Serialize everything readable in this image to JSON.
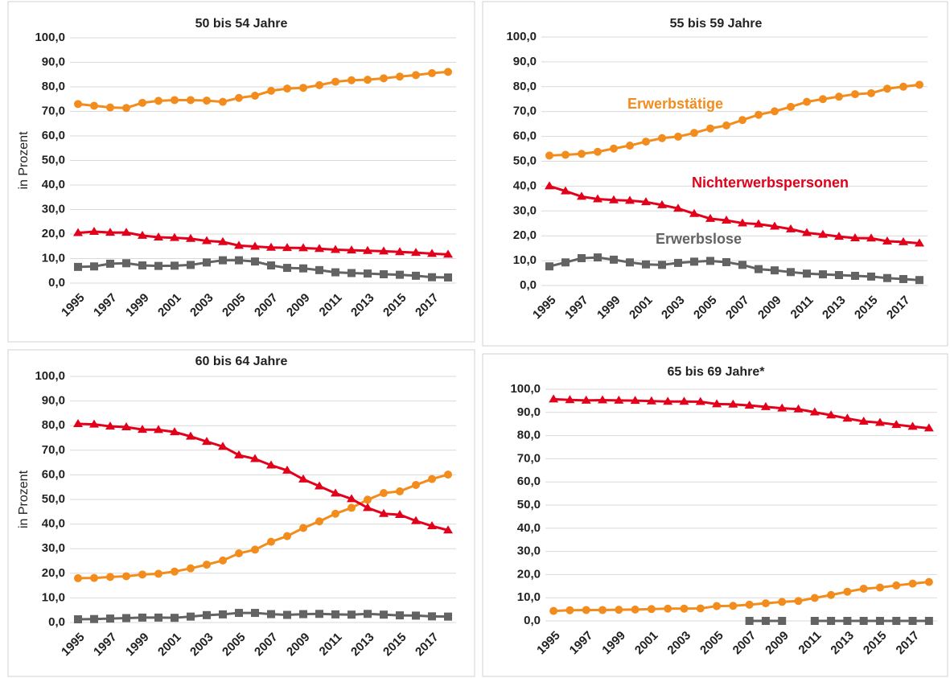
{
  "chart_data": [
    {
      "type": "line",
      "title": "50 bis 54 Jahre",
      "y_label": "in Prozent",
      "categories": [
        "1995",
        null,
        "1997",
        null,
        "1999",
        null,
        "2001",
        null,
        "2003",
        null,
        "2005",
        null,
        "2007",
        null,
        "2009",
        null,
        "2011",
        null,
        "2013",
        null,
        "2015",
        null,
        "2017",
        null
      ],
      "ylim": [
        0,
        100
      ],
      "yticks": [
        {
          "value": 0,
          "label": "0,0"
        },
        {
          "value": 10,
          "label": "10,0"
        },
        {
          "value": 20,
          "label": "20,0"
        },
        {
          "value": 30,
          "label": "30,0"
        },
        {
          "value": 40,
          "label": "40,0"
        },
        {
          "value": 50,
          "label": "50,0"
        },
        {
          "value": 60,
          "label": "60,0"
        },
        {
          "value": 70,
          "label": "70,0"
        },
        {
          "value": 80,
          "label": "80,0"
        },
        {
          "value": 90,
          "label": "90,0"
        },
        {
          "value": 100,
          "label": "100,0"
        }
      ],
      "grid": true,
      "series": [
        {
          "color": "#f28c1c",
          "marker": "circle",
          "values": [
            73.0,
            72.3,
            71.6,
            71.4,
            73.5,
            74.3,
            74.6,
            74.6,
            74.4,
            73.9,
            75.5,
            76.4,
            78.4,
            79.3,
            79.6,
            80.7,
            82.1,
            82.7,
            82.9,
            83.5,
            84.2,
            84.8,
            85.6,
            86.1
          ]
        },
        {
          "color": "#e2001a",
          "marker": "triangle",
          "values": [
            20.5,
            21.0,
            20.6,
            20.6,
            19.4,
            18.7,
            18.5,
            18.1,
            17.2,
            16.8,
            15.3,
            14.9,
            14.5,
            14.4,
            14.3,
            14.0,
            13.6,
            13.4,
            13.2,
            13.0,
            12.7,
            12.4,
            12.0,
            11.7
          ]
        },
        {
          "color": "#636363",
          "marker": "square",
          "values": [
            6.6,
            6.8,
            7.9,
            8.1,
            7.2,
            7.0,
            7.1,
            7.4,
            8.4,
            9.3,
            9.3,
            8.8,
            7.2,
            6.2,
            6.0,
            5.3,
            4.4,
            4.1,
            3.9,
            3.6,
            3.4,
            3.0,
            2.4,
            2.3
          ]
        }
      ]
    },
    {
      "type": "line",
      "title": "55 bis 59 Jahre",
      "categories": [
        "1995",
        null,
        "1997",
        null,
        "1999",
        null,
        "2001",
        null,
        "2003",
        null,
        "2005",
        null,
        "2007",
        null,
        "2009",
        null,
        "2011",
        null,
        "2013",
        null,
        "2015",
        null,
        "2017",
        null
      ],
      "ylim": [
        0,
        100
      ],
      "yticks": [
        {
          "value": 0,
          "label": "0,0"
        },
        {
          "value": 10,
          "label": "10,0"
        },
        {
          "value": 20,
          "label": "20,0"
        },
        {
          "value": 30,
          "label": "30,0"
        },
        {
          "value": 40,
          "label": "40,0"
        },
        {
          "value": 50,
          "label": "50,0"
        },
        {
          "value": 60,
          "label": "60,0"
        },
        {
          "value": 70,
          "label": "70,0"
        },
        {
          "value": 80,
          "label": "80,0"
        },
        {
          "value": 90,
          "label": "90,0"
        },
        {
          "value": 100,
          "label": "100,0"
        }
      ],
      "grid": true,
      "series": [
        {
          "name": "Erwerbstätige",
          "color": "#f28c1c",
          "marker": "circle",
          "values": [
            52.3,
            52.6,
            53.0,
            53.8,
            55.1,
            56.3,
            57.9,
            59.3,
            59.9,
            61.4,
            63.2,
            64.4,
            66.6,
            68.7,
            70.1,
            71.9,
            73.9,
            75.0,
            76.0,
            77.0,
            77.4,
            79.2,
            80.0,
            80.8
          ]
        },
        {
          "name": "Nichterwerbspersonen",
          "color": "#e2001a",
          "marker": "triangle",
          "values": [
            40.0,
            38.0,
            35.8,
            34.8,
            34.4,
            34.2,
            33.6,
            32.4,
            31.0,
            28.9,
            26.9,
            26.2,
            25.1,
            24.7,
            23.8,
            22.7,
            21.2,
            20.5,
            19.7,
            19.1,
            19.0,
            17.8,
            17.5,
            17.0
          ]
        },
        {
          "name": "Erwerbslose",
          "color": "#636363",
          "marker": "square",
          "values": [
            7.7,
            9.3,
            11.0,
            11.3,
            10.4,
            9.3,
            8.5,
            8.3,
            9.1,
            9.6,
            9.9,
            9.4,
            8.3,
            6.6,
            6.1,
            5.4,
            4.8,
            4.5,
            4.2,
            3.9,
            3.6,
            3.0,
            2.6,
            2.2
          ]
        }
      ]
    },
    {
      "type": "line",
      "title": "60 bis 64 Jahre",
      "y_label": "in Prozent",
      "categories": [
        "1995",
        null,
        "1997",
        null,
        "1999",
        null,
        "2001",
        null,
        "2003",
        null,
        "2005",
        null,
        "2007",
        null,
        "2009",
        null,
        "2011",
        null,
        "2013",
        null,
        "2015",
        null,
        "2017",
        null
      ],
      "ylim": [
        0,
        100
      ],
      "yticks": [
        {
          "value": 0,
          "label": "0,0"
        },
        {
          "value": 10,
          "label": "10,0"
        },
        {
          "value": 20,
          "label": "20,0"
        },
        {
          "value": 30,
          "label": "30,0"
        },
        {
          "value": 40,
          "label": "40,0"
        },
        {
          "value": 50,
          "label": "50,0"
        },
        {
          "value": 60,
          "label": "60,0"
        },
        {
          "value": 70,
          "label": "70,0"
        },
        {
          "value": 80,
          "label": "80,0"
        },
        {
          "value": 90,
          "label": "90,0"
        },
        {
          "value": 100,
          "label": "100,0"
        }
      ],
      "grid": true,
      "series": [
        {
          "color": "#f28c1c",
          "marker": "circle",
          "values": [
            18.0,
            18.1,
            18.5,
            18.8,
            19.5,
            19.8,
            20.7,
            22.0,
            23.5,
            25.2,
            28.1,
            29.6,
            32.8,
            35.1,
            38.4,
            41.1,
            44.2,
            46.6,
            49.9,
            52.6,
            53.3,
            55.9,
            58.3,
            60.1
          ]
        },
        {
          "color": "#e2001a",
          "marker": "triangle",
          "values": [
            80.7,
            80.5,
            79.7,
            79.4,
            78.4,
            78.3,
            77.4,
            75.6,
            73.5,
            71.5,
            68.0,
            66.5,
            63.9,
            61.8,
            58.2,
            55.4,
            52.5,
            50.2,
            46.6,
            44.2,
            43.8,
            41.3,
            39.2,
            37.5
          ]
        },
        {
          "color": "#636363",
          "marker": "square",
          "values": [
            1.3,
            1.4,
            1.6,
            1.8,
            2.0,
            2.0,
            1.9,
            2.4,
            3.0,
            3.3,
            3.9,
            3.9,
            3.4,
            3.1,
            3.4,
            3.5,
            3.3,
            3.2,
            3.5,
            3.2,
            2.9,
            2.8,
            2.5,
            2.4
          ]
        }
      ]
    },
    {
      "type": "line",
      "title": "65 bis 69 Jahre*",
      "categories": [
        "1995",
        null,
        "1997",
        null,
        "1999",
        null,
        "2001",
        null,
        "2003",
        null,
        "2005",
        null,
        "2007",
        null,
        "2009",
        null,
        "2011",
        null,
        "2013",
        null,
        "2015",
        null,
        "2017",
        null
      ],
      "ylim": [
        0,
        100
      ],
      "yticks": [
        {
          "value": 0,
          "label": "0,0"
        },
        {
          "value": 10,
          "label": "10,0"
        },
        {
          "value": 20,
          "label": "20,0"
        },
        {
          "value": 30,
          "label": "30,0"
        },
        {
          "value": 40,
          "label": "40,0"
        },
        {
          "value": 50,
          "label": "50,0"
        },
        {
          "value": 60,
          "label": "60,0"
        },
        {
          "value": 70,
          "label": "70,0"
        },
        {
          "value": 80,
          "label": "80,0"
        },
        {
          "value": 90,
          "label": "90,0"
        },
        {
          "value": 100,
          "label": "100,0"
        }
      ],
      "grid": true,
      "series": [
        {
          "color": "#f28c1c",
          "marker": "circle",
          "values": [
            4.3,
            4.6,
            4.7,
            4.7,
            4.8,
            4.9,
            5.1,
            5.3,
            5.3,
            5.4,
            6.4,
            6.5,
            7.0,
            7.6,
            8.2,
            8.6,
            9.9,
            11.2,
            12.6,
            13.9,
            14.4,
            15.3,
            16.1,
            16.8
          ]
        },
        {
          "color": "#e2001a",
          "marker": "triangle",
          "values": [
            95.7,
            95.4,
            95.2,
            95.3,
            95.2,
            95.1,
            94.9,
            94.7,
            94.7,
            94.6,
            93.6,
            93.5,
            93.0,
            92.4,
            91.8,
            91.4,
            90.1,
            88.8,
            87.4,
            86.1,
            85.6,
            84.7,
            83.9,
            83.2
          ]
        },
        {
          "color": "#636363",
          "marker": "square",
          "values": [
            null,
            null,
            null,
            null,
            null,
            null,
            null,
            null,
            null,
            null,
            null,
            null,
            0,
            0,
            0,
            null,
            0,
            0,
            0,
            0,
            0,
            0,
            0,
            0
          ]
        }
      ]
    }
  ]
}
